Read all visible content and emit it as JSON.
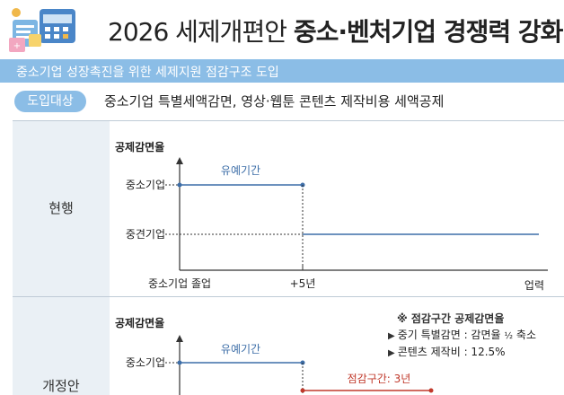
{
  "header": {
    "title_plain": "2026 세제개편안",
    "title_bold": "중소·벤처기업 경쟁력 강화"
  },
  "subband": {
    "text": "중소기업 성장촉진을 위한 세제지원 점감구조 도입"
  },
  "target": {
    "label": "도입대상",
    "text": "중소기업 특별세액감면, 영상·웹툰 콘텐츠 제작비용 세액공제"
  },
  "current": {
    "row_label": "현행",
    "y_axis_label": "공제감면율",
    "y_labels": [
      "중소기업",
      "중견기업"
    ],
    "period_label": "유예기간",
    "x_start_label": "중소기업 졸업",
    "x_mid_label": "+5년",
    "x_axis_label": "업력"
  },
  "revised": {
    "row_label": "개정안",
    "y_axis_label": "공제감면율",
    "y_labels": [
      "중소기업"
    ],
    "period_label": "유예기간",
    "taper_label": "점감구간: 3년",
    "note": {
      "title": "※ 점감구간 공제감면율",
      "item1_prefix": "중기 특별감면 : 감면율",
      "item1_fraction": "½",
      "item1_suffix": "축소",
      "item2": "콘텐츠 제작비 : 12.5%"
    }
  },
  "colors": {
    "accent_blue": "#8bbde6",
    "line_blue": "#3d6ea8",
    "line_red": "#c0392b",
    "row_bg": "#eaf0f5"
  }
}
